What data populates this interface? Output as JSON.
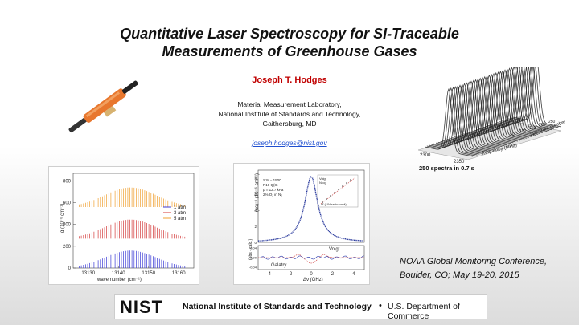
{
  "title": {
    "line1": "Quantitative Laser Spectroscopy for SI-Traceable",
    "line2": "Measurements of Greenhouse Gases"
  },
  "author": "Joseph T. Hodges",
  "affiliation": {
    "line1": "Material Measurement Laboratory,",
    "line2": "National Institute of Standards and Technology,",
    "line3": "Gaithersburg, MD"
  },
  "email": "joseph.hodges@nist.gov",
  "surface_plot": {
    "caption": "250 spectra in 0.7 s",
    "xlabel": "frequency (MHz)",
    "ylabel": "spectrum number",
    "x_ticks": [
      "2300",
      "2350"
    ],
    "y_ticks": [
      "50",
      "100",
      "150",
      "200",
      "250"
    ]
  },
  "conference": {
    "line1": "NOAA Global Monitoring Conference,",
    "line2": "Boulder, CO; May 19-20, 2015"
  },
  "footer": {
    "logo_text": "NIST",
    "institute": "National Institute of Standards and Technology",
    "separator": "•",
    "department": "U.S. Department of Commerce"
  },
  "chart_data": [
    {
      "type": "line",
      "xlabel": "wave number (cm⁻¹)",
      "ylabel": "α (10⁻⁶ cm⁻¹)",
      "x_ticks": [
        "13130",
        "13140",
        "13150",
        "13160"
      ],
      "y_ticks": [
        "0",
        "200",
        "400",
        "600",
        "800"
      ],
      "xlim": [
        13125,
        13165
      ],
      "ylim": [
        0,
        870
      ],
      "series": [
        {
          "name": "1 atm",
          "color": "#3b3bd6",
          "offset": 0,
          "peak": 160
        },
        {
          "name": "3 atm",
          "color": "#d43a3a",
          "offset": 270,
          "peak": 175
        },
        {
          "name": "5 atm",
          "color": "#f0a030",
          "offset": 560,
          "peak": 180
        }
      ]
    },
    {
      "type": "line",
      "upper_ylabel": "(cc)⁻¹ (10⁻⁶ cm⁻¹)",
      "lower_ylabel": "(obs - calc.)",
      "xlabel": "Δν (GHz)",
      "x_ticks": [
        "-4",
        "-2",
        "0",
        "2",
        "4"
      ],
      "y_ticks_upper": [
        "0",
        "2",
        "4",
        "6",
        "8"
      ],
      "y_ticks_lower": [
        "-0.04",
        "0.00",
        "0.04"
      ],
      "annotations": [
        "S:N = 1500",
        "R10 Q(8)",
        "p = 12.7 kPa",
        "2% O₂ in N₂"
      ],
      "residual_labels": [
        "Voigt",
        "Galatry"
      ],
      "inset_labels": [
        "Voigt",
        "Nrog"
      ],
      "inset_xlabel": "ν² (10⁴ ratio· cm⁴)"
    }
  ]
}
